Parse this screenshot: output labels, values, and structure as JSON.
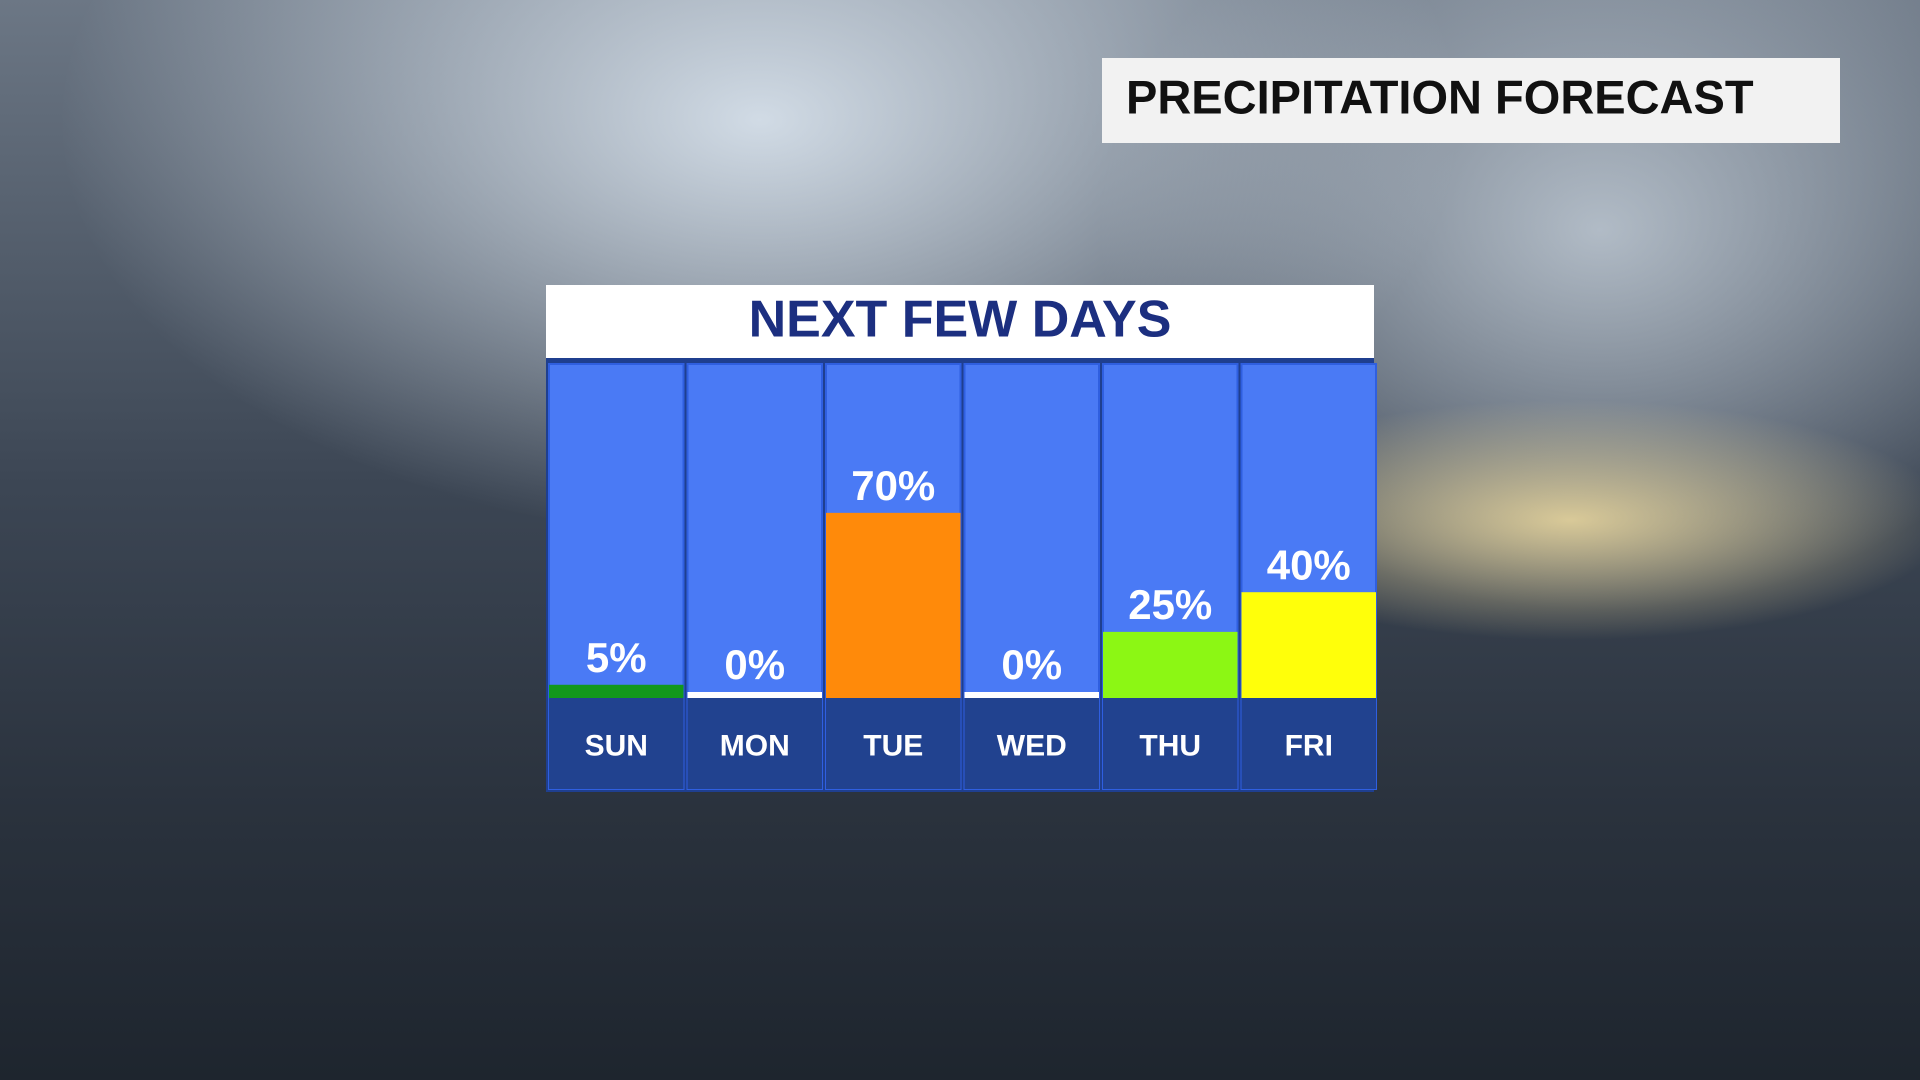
{
  "header": {
    "title": "PRECIPITATION FORECAST"
  },
  "chart_data": {
    "type": "bar",
    "title": "NEXT FEW DAYS",
    "categories": [
      "SUN",
      "MON",
      "TUE",
      "WED",
      "THU",
      "FRI"
    ],
    "values": [
      5,
      0,
      70,
      0,
      25,
      40
    ],
    "value_labels": [
      "5%",
      "0%",
      "70%",
      "0%",
      "25%",
      "40%"
    ],
    "colors": [
      "#12981c",
      "#ffffff",
      "#ff8a0a",
      "#ffffff",
      "#8cf714",
      "#ffff0a"
    ]
  }
}
